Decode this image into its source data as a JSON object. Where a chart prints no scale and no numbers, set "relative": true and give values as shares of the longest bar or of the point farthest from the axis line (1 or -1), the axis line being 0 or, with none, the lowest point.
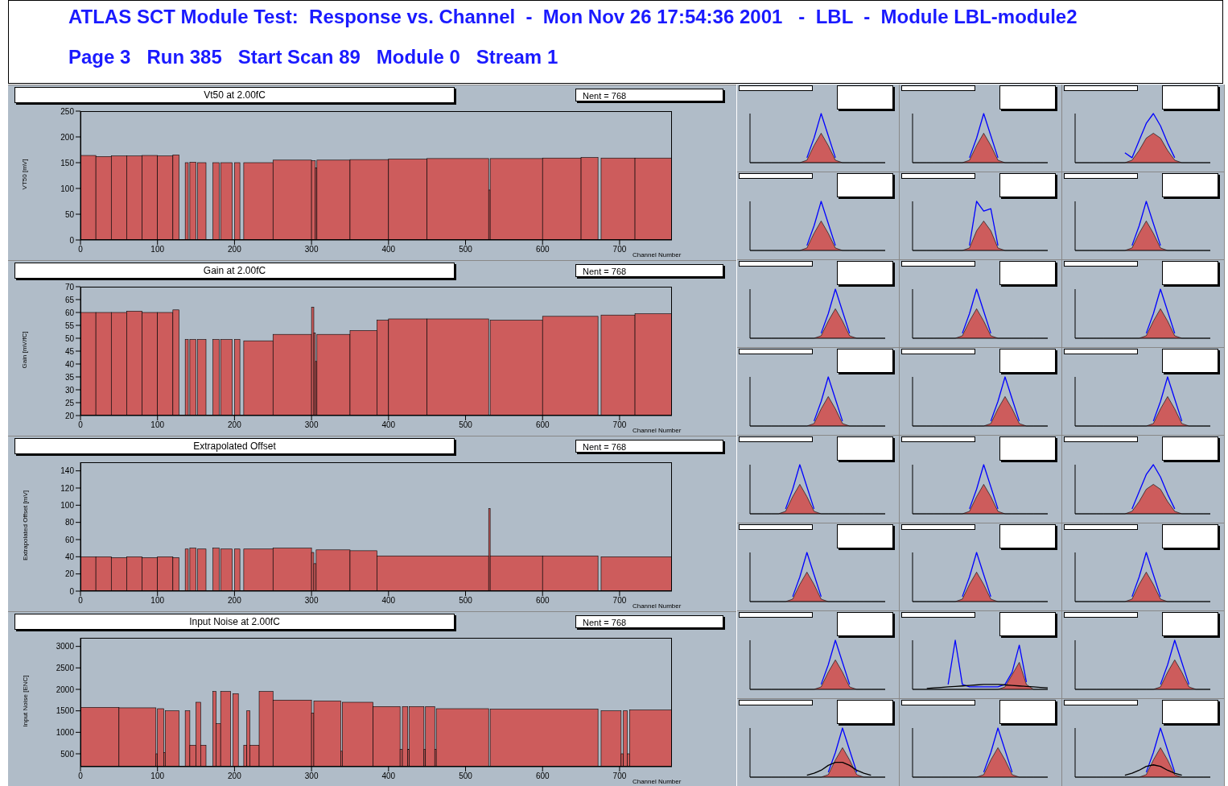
{
  "chart_data": [
    {
      "type": "other",
      "title": "ATLAS SCT Module Test:  Response vs. Channel  -  Mon Nov 26 17:54:36 2001   -  LBL  -  Module LBL-module2",
      "subtitle": "Page 3   Run 385   Start Scan 89   Module 0   Stream 1"
    },
    {
      "type": "histogram",
      "title": "Vt50 at 2.00fC",
      "xlabel": "Channel Number",
      "ylabel": "VT50 [mV]",
      "color": "#cd5c5c",
      "annotations": [
        "Nent = 768"
      ],
      "xlim": [
        0,
        768
      ],
      "xticks": [
        0,
        100,
        200,
        300,
        400,
        500,
        600,
        700
      ],
      "ylim": [
        0,
        250
      ],
      "yticks": [
        0,
        50,
        100,
        150,
        200,
        250
      ],
      "bins": [
        0,
        20,
        40,
        60,
        80,
        100,
        120,
        128,
        136,
        140,
        142,
        150,
        152,
        163,
        172,
        180,
        182,
        197,
        200,
        207,
        212,
        250,
        300,
        305,
        307,
        350,
        400,
        450,
        530,
        532,
        600,
        650,
        672,
        676,
        720,
        768
      ],
      "values": [
        164,
        162,
        163,
        163,
        164,
        163,
        165,
        0,
        150,
        0,
        151,
        0,
        150,
        0,
        150,
        0,
        150,
        0,
        150,
        0,
        150,
        155,
        154,
        140,
        155,
        156,
        157,
        158,
        97,
        158,
        159,
        160,
        0,
        159,
        159
      ]
    },
    {
      "type": "histogram",
      "title": "Gain at 2.00fC",
      "xlabel": "Channel Number",
      "ylabel": "Gain [mV/fC]",
      "color": "#cd5c5c",
      "annotations": [
        "Nent = 768"
      ],
      "xlim": [
        0,
        768
      ],
      "xticks": [
        0,
        100,
        200,
        300,
        400,
        500,
        600,
        700
      ],
      "ylim": [
        20,
        70
      ],
      "yticks": [
        20,
        25,
        30,
        35,
        40,
        45,
        50,
        55,
        60,
        65,
        70
      ],
      "bins": [
        0,
        20,
        40,
        60,
        80,
        100,
        120,
        128,
        136,
        140,
        142,
        150,
        152,
        163,
        172,
        180,
        182,
        197,
        200,
        207,
        212,
        250,
        300,
        303,
        305,
        307,
        350,
        385,
        400,
        450,
        530,
        532,
        600,
        672,
        676,
        720,
        768
      ],
      "values": [
        60,
        60,
        60,
        60.5,
        60,
        60,
        61,
        null,
        49.5,
        null,
        49.5,
        null,
        49.5,
        null,
        49.5,
        null,
        49.5,
        null,
        49.5,
        null,
        49,
        51.5,
        62,
        52,
        41,
        51.5,
        53,
        57,
        57.5,
        57.5,
        null,
        57,
        58.5,
        null,
        59,
        59.5
      ]
    },
    {
      "type": "histogram",
      "title": "Extrapolated Offset",
      "xlabel": "Channel Number",
      "ylabel": "Extrapolated Offset [mV]",
      "color": "#cd5c5c",
      "annotations": [
        "Nent = 768"
      ],
      "xlim": [
        0,
        768
      ],
      "xticks": [
        0,
        100,
        200,
        300,
        400,
        500,
        600,
        700
      ],
      "ylim": [
        0,
        150
      ],
      "yticks": [
        0,
        20,
        40,
        60,
        80,
        100,
        120,
        140
      ],
      "bins": [
        0,
        20,
        40,
        60,
        80,
        100,
        120,
        128,
        136,
        140,
        142,
        150,
        152,
        163,
        172,
        180,
        182,
        197,
        200,
        207,
        212,
        250,
        300,
        303,
        306,
        350,
        385,
        530,
        532,
        600,
        672,
        676,
        768
      ],
      "values": [
        40,
        40,
        39,
        40,
        39,
        40,
        39,
        0,
        49,
        0,
        50,
        0,
        49,
        0,
        50,
        0,
        49,
        0,
        49,
        0,
        49,
        50,
        45,
        32,
        48,
        47,
        41,
        96,
        41,
        41,
        0,
        40
      ]
    },
    {
      "type": "histogram",
      "title": "Input Noise at 2.00fC",
      "xlabel": "Channel Number",
      "ylabel": "Input Noise [ENC]",
      "color": "#cd5c5c",
      "annotations": [
        "Nent = 768"
      ],
      "xlim": [
        0,
        768
      ],
      "xticks": [
        0,
        100,
        200,
        300,
        400,
        500,
        600,
        700
      ],
      "ylim": [
        200,
        3200
      ],
      "yticks": [
        500,
        1000,
        1500,
        2000,
        2500,
        3000
      ],
      "bins": [
        0,
        50,
        98,
        100,
        108,
        110,
        128,
        136,
        142,
        150,
        156,
        163,
        172,
        176,
        182,
        195,
        198,
        205,
        212,
        216,
        220,
        232,
        250,
        300,
        303,
        338,
        340,
        380,
        415,
        418,
        425,
        427,
        446,
        448,
        460,
        462,
        530,
        532,
        672,
        676,
        702,
        705,
        710,
        713,
        768
      ],
      "values": [
        1580,
        1570,
        500,
        1550,
        530,
        1500,
        null,
        1500,
        700,
        1700,
        700,
        null,
        1950,
        1200,
        1950,
        null,
        1900,
        null,
        700,
        1500,
        700,
        1950,
        1750,
        1450,
        1730,
        560,
        1700,
        1600,
        600,
        1600,
        600,
        1600,
        600,
        1600,
        600,
        1550,
        null,
        1540,
        null,
        1500,
        500,
        1500,
        500,
        1520
      ]
    },
    {
      "type": "area",
      "relative": true,
      "tick_labels": false,
      "categories": [
        null,
        null,
        null,
        null,
        null,
        null,
        null,
        null,
        null,
        null,
        null,
        null,
        null,
        null,
        null,
        null,
        null,
        null,
        null,
        null
      ],
      "series": [
        {
          "color": "#cd5c5c",
          "values": [
            0,
            0,
            0,
            0,
            0,
            0,
            0,
            0,
            0.05,
            0.35,
            0.6,
            0.35,
            0.05,
            0,
            0,
            0,
            0,
            0,
            0,
            0
          ]
        },
        {
          "type": "line",
          "color": "#0000ff",
          "values": [
            null,
            null,
            null,
            null,
            null,
            null,
            null,
            null,
            0.1,
            0.5,
            1,
            0.55,
            0.1,
            null,
            null,
            null,
            null,
            null,
            null,
            null
          ]
        }
      ]
    },
    {
      "type": "area",
      "relative": true,
      "tick_labels": false,
      "categories": [
        null,
        null,
        null,
        null,
        null,
        null,
        null,
        null,
        null,
        null,
        null,
        null,
        null,
        null,
        null,
        null,
        null,
        null,
        null,
        null
      ],
      "series": [
        {
          "color": "#cd5c5c",
          "values": [
            0,
            0,
            0,
            0,
            0,
            0,
            0,
            0,
            0.05,
            0.35,
            0.6,
            0.35,
            0.05,
            0,
            0,
            0,
            0,
            0,
            0,
            0
          ]
        },
        {
          "type": "line",
          "color": "#0000ff",
          "values": [
            null,
            null,
            null,
            null,
            null,
            null,
            null,
            null,
            0.1,
            0.5,
            1,
            0.55,
            0.1,
            null,
            null,
            null,
            null,
            null,
            null,
            null
          ]
        }
      ]
    },
    {
      "type": "area",
      "relative": true,
      "tick_labels": false,
      "categories": [
        null,
        null,
        null,
        null,
        null,
        null,
        null,
        null,
        null,
        null,
        null,
        null,
        null,
        null,
        null,
        null,
        null,
        null,
        null,
        null
      ],
      "series": [
        {
          "color": "#cd5c5c",
          "values": [
            0,
            0,
            0,
            0,
            0,
            0,
            0,
            0,
            0.05,
            0.25,
            0.5,
            0.6,
            0.5,
            0.25,
            0.05,
            0,
            0,
            0,
            0,
            0
          ]
        },
        {
          "type": "line",
          "color": "#0000ff",
          "values": [
            null,
            null,
            null,
            null,
            null,
            null,
            null,
            0.2,
            0.1,
            0.45,
            0.8,
            1,
            0.75,
            0.4,
            0.1,
            null,
            null,
            null,
            null,
            null
          ]
        }
      ]
    },
    {
      "type": "area",
      "relative": true,
      "tick_labels": false,
      "categories": [
        null,
        null,
        null,
        null,
        null,
        null,
        null,
        null,
        null,
        null,
        null,
        null,
        null,
        null,
        null,
        null,
        null,
        null,
        null,
        null
      ],
      "series": [
        {
          "color": "#cd5c5c",
          "values": [
            0,
            0,
            0,
            0,
            0,
            0,
            0,
            0,
            0.05,
            0.35,
            0.6,
            0.35,
            0.05,
            0,
            0,
            0,
            0,
            0,
            0,
            0
          ]
        },
        {
          "type": "line",
          "color": "#0000ff",
          "values": [
            null,
            null,
            null,
            null,
            null,
            null,
            null,
            null,
            0.1,
            0.5,
            1,
            0.55,
            0.1,
            null,
            null,
            null,
            null,
            null,
            null,
            null
          ]
        }
      ]
    },
    {
      "type": "area",
      "relative": true,
      "tick_labels": false,
      "categories": [
        null,
        null,
        null,
        null,
        null,
        null,
        null,
        null,
        null,
        null,
        null,
        null,
        null,
        null,
        null,
        null,
        null,
        null,
        null,
        null
      ],
      "series": [
        {
          "color": "#cd5c5c",
          "values": [
            0,
            0,
            0,
            0,
            0,
            0,
            0,
            0,
            0.05,
            0.4,
            0.6,
            0.4,
            0.05,
            0,
            0,
            0,
            0,
            0,
            0,
            0
          ]
        },
        {
          "type": "line",
          "color": "#0000ff",
          "values": [
            null,
            null,
            null,
            null,
            null,
            null,
            null,
            null,
            0.1,
            1,
            0.8,
            0.85,
            0.1,
            null,
            null,
            null,
            null,
            null,
            null,
            null
          ]
        }
      ]
    },
    {
      "type": "area",
      "relative": true,
      "tick_labels": false,
      "categories": [
        null,
        null,
        null,
        null,
        null,
        null,
        null,
        null,
        null,
        null,
        null,
        null,
        null,
        null,
        null,
        null,
        null,
        null,
        null,
        null
      ],
      "series": [
        {
          "color": "#cd5c5c",
          "values": [
            0,
            0,
            0,
            0,
            0,
            0,
            0,
            0,
            0.05,
            0.35,
            0.6,
            0.35,
            0.05,
            0,
            0,
            0,
            0,
            0,
            0,
            0
          ]
        },
        {
          "type": "line",
          "color": "#0000ff",
          "values": [
            null,
            null,
            null,
            null,
            null,
            null,
            null,
            null,
            0.1,
            0.5,
            1,
            0.55,
            0.1,
            null,
            null,
            null,
            null,
            null,
            null,
            null
          ]
        }
      ]
    },
    {
      "type": "area",
      "relative": true,
      "tick_labels": false,
      "categories": [
        null,
        null,
        null,
        null,
        null,
        null,
        null,
        null,
        null,
        null,
        null,
        null,
        null,
        null,
        null,
        null,
        null,
        null,
        null,
        null
      ],
      "series": [
        {
          "color": "#cd5c5c",
          "values": [
            0,
            0,
            0,
            0,
            0,
            0,
            0,
            0,
            0,
            0,
            0.05,
            0.35,
            0.6,
            0.35,
            0.05,
            0,
            0,
            0,
            0,
            0
          ]
        },
        {
          "type": "line",
          "color": "#0000ff",
          "values": [
            null,
            null,
            null,
            null,
            null,
            null,
            null,
            null,
            null,
            null,
            0.1,
            0.5,
            1,
            0.55,
            0.1,
            null,
            null,
            null,
            null,
            null
          ]
        }
      ]
    },
    {
      "type": "area",
      "relative": true,
      "tick_labels": false,
      "categories": [
        null,
        null,
        null,
        null,
        null,
        null,
        null,
        null,
        null,
        null,
        null,
        null,
        null,
        null,
        null,
        null,
        null,
        null,
        null,
        null
      ],
      "series": [
        {
          "color": "#cd5c5c",
          "values": [
            0,
            0,
            0,
            0,
            0,
            0,
            0,
            0.05,
            0.35,
            0.6,
            0.35,
            0.05,
            0,
            0,
            0,
            0,
            0,
            0,
            0,
            0
          ]
        },
        {
          "type": "line",
          "color": "#0000ff",
          "values": [
            null,
            null,
            null,
            null,
            null,
            null,
            null,
            0.1,
            0.5,
            1,
            0.55,
            0.1,
            null,
            null,
            null,
            null,
            null,
            null,
            null,
            null
          ]
        }
      ]
    },
    {
      "type": "area",
      "relative": true,
      "tick_labels": false,
      "categories": [
        null,
        null,
        null,
        null,
        null,
        null,
        null,
        null,
        null,
        null,
        null,
        null,
        null,
        null,
        null,
        null,
        null,
        null,
        null,
        null
      ],
      "series": [
        {
          "color": "#cd5c5c",
          "values": [
            0,
            0,
            0,
            0,
            0,
            0,
            0,
            0,
            0,
            0,
            0.05,
            0.35,
            0.6,
            0.35,
            0.05,
            0,
            0,
            0,
            0,
            0
          ]
        },
        {
          "type": "line",
          "color": "#0000ff",
          "values": [
            null,
            null,
            null,
            null,
            null,
            null,
            null,
            null,
            null,
            null,
            0.1,
            0.5,
            1,
            0.55,
            0.1,
            null,
            null,
            null,
            null,
            null
          ]
        }
      ]
    },
    {
      "type": "area",
      "relative": true,
      "tick_labels": false,
      "categories": [
        null,
        null,
        null,
        null,
        null,
        null,
        null,
        null,
        null,
        null,
        null,
        null,
        null,
        null,
        null,
        null,
        null,
        null,
        null,
        null
      ],
      "series": [
        {
          "color": "#cd5c5c",
          "values": [
            0,
            0,
            0,
            0,
            0,
            0,
            0,
            0,
            0,
            0.05,
            0.35,
            0.6,
            0.35,
            0.05,
            0,
            0,
            0,
            0,
            0,
            0
          ]
        },
        {
          "type": "line",
          "color": "#0000ff",
          "values": [
            null,
            null,
            null,
            null,
            null,
            null,
            null,
            null,
            null,
            0.1,
            0.5,
            1,
            0.55,
            0.1,
            null,
            null,
            null,
            null,
            null,
            null
          ]
        }
      ]
    },
    {
      "type": "area",
      "relative": true,
      "tick_labels": false,
      "categories": [
        null,
        null,
        null,
        null,
        null,
        null,
        null,
        null,
        null,
        null,
        null,
        null,
        null,
        null,
        null,
        null,
        null,
        null,
        null,
        null
      ],
      "series": [
        {
          "color": "#cd5c5c",
          "values": [
            0,
            0,
            0,
            0,
            0,
            0,
            0,
            0,
            0,
            0,
            0,
            0.05,
            0.35,
            0.6,
            0.35,
            0.05,
            0,
            0,
            0,
            0
          ]
        },
        {
          "type": "line",
          "color": "#0000ff",
          "values": [
            null,
            null,
            null,
            null,
            null,
            null,
            null,
            null,
            null,
            null,
            null,
            0.1,
            0.5,
            1,
            0.55,
            0.1,
            null,
            null,
            null,
            null
          ]
        }
      ]
    },
    {
      "type": "area",
      "relative": true,
      "tick_labels": false,
      "categories": [
        null,
        null,
        null,
        null,
        null,
        null,
        null,
        null,
        null,
        null,
        null,
        null,
        null,
        null,
        null,
        null,
        null,
        null,
        null,
        null
      ],
      "series": [
        {
          "color": "#cd5c5c",
          "values": [
            0,
            0,
            0,
            0,
            0,
            0,
            0,
            0,
            0,
            0,
            0,
            0.05,
            0.35,
            0.6,
            0.35,
            0.05,
            0,
            0,
            0,
            0
          ]
        },
        {
          "type": "line",
          "color": "#0000ff",
          "values": [
            null,
            null,
            null,
            null,
            null,
            null,
            null,
            null,
            null,
            null,
            null,
            0.1,
            0.5,
            1,
            0.55,
            0.1,
            null,
            null,
            null,
            null
          ]
        }
      ]
    },
    {
      "type": "area",
      "relative": true,
      "tick_labels": false,
      "categories": [
        null,
        null,
        null,
        null,
        null,
        null,
        null,
        null,
        null,
        null,
        null,
        null,
        null,
        null,
        null,
        null,
        null,
        null,
        null,
        null
      ],
      "series": [
        {
          "color": "#cd5c5c",
          "values": [
            0,
            0,
            0,
            0,
            0,
            0.05,
            0.35,
            0.6,
            0.35,
            0.05,
            0,
            0,
            0,
            0,
            0,
            0,
            0,
            0,
            0,
            0
          ]
        },
        {
          "type": "line",
          "color": "#0000ff",
          "values": [
            null,
            null,
            null,
            null,
            null,
            0.1,
            0.5,
            1,
            0.55,
            0.1,
            null,
            null,
            null,
            null,
            null,
            null,
            null,
            null,
            null,
            null
          ]
        }
      ]
    },
    {
      "type": "area",
      "relative": true,
      "tick_labels": false,
      "categories": [
        null,
        null,
        null,
        null,
        null,
        null,
        null,
        null,
        null,
        null,
        null,
        null,
        null,
        null,
        null,
        null,
        null,
        null,
        null,
        null
      ],
      "series": [
        {
          "color": "#cd5c5c",
          "values": [
            0,
            0,
            0,
            0,
            0,
            0,
            0,
            0,
            0.05,
            0.35,
            0.6,
            0.35,
            0.05,
            0,
            0,
            0,
            0,
            0,
            0,
            0
          ]
        },
        {
          "type": "line",
          "color": "#0000ff",
          "values": [
            null,
            null,
            null,
            null,
            null,
            null,
            null,
            null,
            0.1,
            0.5,
            1,
            0.55,
            0.1,
            null,
            null,
            null,
            null,
            null,
            null,
            null
          ]
        }
      ]
    },
    {
      "type": "area",
      "relative": true,
      "tick_labels": false,
      "categories": [
        null,
        null,
        null,
        null,
        null,
        null,
        null,
        null,
        null,
        null,
        null,
        null,
        null,
        null,
        null,
        null,
        null,
        null,
        null,
        null
      ],
      "series": [
        {
          "color": "#cd5c5c",
          "values": [
            0,
            0,
            0,
            0,
            0,
            0,
            0,
            0,
            0.05,
            0.25,
            0.5,
            0.6,
            0.5,
            0.25,
            0.05,
            0,
            0,
            0,
            0,
            0
          ]
        },
        {
          "type": "line",
          "color": "#0000ff",
          "values": [
            null,
            null,
            null,
            null,
            null,
            null,
            null,
            null,
            0.1,
            0.45,
            0.8,
            1,
            0.75,
            0.4,
            0.1,
            null,
            null,
            null,
            null,
            null
          ]
        }
      ]
    },
    {
      "type": "area",
      "relative": true,
      "tick_labels": false,
      "categories": [
        null,
        null,
        null,
        null,
        null,
        null,
        null,
        null,
        null,
        null,
        null,
        null,
        null,
        null,
        null,
        null,
        null,
        null,
        null,
        null
      ],
      "series": [
        {
          "color": "#cd5c5c",
          "values": [
            0,
            0,
            0,
            0,
            0,
            0,
            0.05,
            0.35,
            0.6,
            0.35,
            0.05,
            0,
            0,
            0,
            0,
            0,
            0,
            0,
            0,
            0
          ]
        },
        {
          "type": "line",
          "color": "#0000ff",
          "values": [
            null,
            null,
            null,
            null,
            null,
            null,
            0.1,
            0.5,
            1,
            0.55,
            0.1,
            null,
            null,
            null,
            null,
            null,
            null,
            null,
            null,
            null
          ]
        }
      ]
    },
    {
      "type": "area",
      "relative": true,
      "tick_labels": false,
      "categories": [
        null,
        null,
        null,
        null,
        null,
        null,
        null,
        null,
        null,
        null,
        null,
        null,
        null,
        null,
        null,
        null,
        null,
        null,
        null,
        null
      ],
      "series": [
        {
          "color": "#cd5c5c",
          "values": [
            0,
            0,
            0,
            0,
            0,
            0,
            0,
            0.05,
            0.35,
            0.6,
            0.35,
            0.05,
            0,
            0,
            0,
            0,
            0,
            0,
            0,
            0
          ]
        },
        {
          "type": "line",
          "color": "#0000ff",
          "values": [
            null,
            null,
            null,
            null,
            null,
            null,
            null,
            0.1,
            0.5,
            1,
            0.55,
            0.1,
            null,
            null,
            null,
            null,
            null,
            null,
            null,
            null
          ]
        }
      ]
    },
    {
      "type": "area",
      "relative": true,
      "tick_labels": false,
      "categories": [
        null,
        null,
        null,
        null,
        null,
        null,
        null,
        null,
        null,
        null,
        null,
        null,
        null,
        null,
        null,
        null,
        null,
        null,
        null,
        null
      ],
      "series": [
        {
          "color": "#cd5c5c",
          "values": [
            0,
            0,
            0,
            0,
            0,
            0,
            0,
            0,
            0.05,
            0.35,
            0.6,
            0.35,
            0.05,
            0,
            0,
            0,
            0,
            0,
            0,
            0
          ]
        },
        {
          "type": "line",
          "color": "#0000ff",
          "values": [
            null,
            null,
            null,
            null,
            null,
            null,
            null,
            null,
            0.1,
            0.5,
            1,
            0.55,
            0.1,
            null,
            null,
            null,
            null,
            null,
            null,
            null
          ]
        }
      ]
    },
    {
      "type": "area",
      "relative": true,
      "tick_labels": false,
      "categories": [
        null,
        null,
        null,
        null,
        null,
        null,
        null,
        null,
        null,
        null,
        null,
        null,
        null,
        null,
        null,
        null,
        null,
        null,
        null,
        null
      ],
      "series": [
        {
          "color": "#cd5c5c",
          "values": [
            0,
            0,
            0,
            0,
            0,
            0,
            0,
            0,
            0,
            0,
            0.05,
            0.35,
            0.6,
            0.35,
            0.05,
            0,
            0,
            0,
            0,
            0
          ]
        },
        {
          "type": "line",
          "color": "#0000ff",
          "values": [
            null,
            null,
            null,
            null,
            null,
            null,
            null,
            null,
            null,
            null,
            0.1,
            0.5,
            1,
            0.55,
            0.1,
            null,
            null,
            null,
            null,
            null
          ]
        }
      ]
    },
    {
      "type": "area",
      "relative": true,
      "tick_labels": false,
      "categories": [
        null,
        null,
        null,
        null,
        null,
        null,
        null,
        null,
        null,
        null,
        null,
        null,
        null,
        null,
        null,
        null,
        null,
        null,
        null,
        null
      ],
      "series": [
        {
          "color": "#cd5c5c",
          "values": [
            0,
            0,
            0,
            0,
            0,
            0,
            0,
            0,
            0,
            0,
            0,
            0,
            0,
            0.05,
            0.3,
            0.55,
            0.1,
            0,
            0,
            0
          ]
        },
        {
          "type": "line",
          "color": "#0000ff",
          "values": [
            null,
            null,
            null,
            null,
            null,
            0.1,
            1,
            0.1,
            0.05,
            0.05,
            0.05,
            0.05,
            0.05,
            0.1,
            0.35,
            0.9,
            0.15,
            null,
            null,
            null
          ]
        },
        {
          "type": "line",
          "color": "#000000",
          "values": [
            null,
            null,
            0.02,
            0.03,
            0.04,
            0.05,
            0.06,
            0.07,
            0.08,
            0.09,
            0.1,
            0.1,
            0.1,
            0.09,
            0.08,
            0.07,
            0.06,
            0.05,
            0.04,
            0.03
          ]
        }
      ]
    },
    {
      "type": "area",
      "relative": true,
      "tick_labels": false,
      "categories": [
        null,
        null,
        null,
        null,
        null,
        null,
        null,
        null,
        null,
        null,
        null,
        null,
        null,
        null,
        null,
        null,
        null,
        null,
        null,
        null
      ],
      "series": [
        {
          "color": "#cd5c5c",
          "values": [
            0,
            0,
            0,
            0,
            0,
            0,
            0,
            0,
            0,
            0,
            0,
            0,
            0.05,
            0.35,
            0.6,
            0.35,
            0.05,
            0,
            0,
            0
          ]
        },
        {
          "type": "line",
          "color": "#0000ff",
          "values": [
            null,
            null,
            null,
            null,
            null,
            null,
            null,
            null,
            null,
            null,
            null,
            null,
            0.1,
            0.5,
            1,
            0.55,
            0.1,
            null,
            null,
            null
          ]
        }
      ]
    },
    {
      "type": "area",
      "relative": true,
      "tick_labels": false,
      "categories": [
        null,
        null,
        null,
        null,
        null,
        null,
        null,
        null,
        null,
        null,
        null,
        null,
        null,
        null,
        null,
        null,
        null,
        null,
        null,
        null
      ],
      "series": [
        {
          "color": "#cd5c5c",
          "values": [
            0,
            0,
            0,
            0,
            0,
            0,
            0,
            0,
            0,
            0,
            0,
            0.05,
            0.35,
            0.6,
            0.35,
            0.05,
            0,
            0,
            0,
            0
          ]
        },
        {
          "type": "line",
          "color": "#0000ff",
          "values": [
            null,
            null,
            null,
            null,
            null,
            null,
            null,
            null,
            null,
            null,
            null,
            0.1,
            0.5,
            1,
            0.55,
            0.1,
            null,
            null,
            null,
            null
          ]
        },
        {
          "type": "line",
          "color": "#000000",
          "values": [
            null,
            null,
            null,
            null,
            null,
            null,
            null,
            null,
            0.04,
            0.08,
            0.14,
            0.24,
            0.3,
            0.3,
            0.24,
            0.14,
            0.08,
            0.04,
            null,
            null
          ]
        }
      ]
    },
    {
      "type": "area",
      "relative": true,
      "tick_labels": false,
      "categories": [
        null,
        null,
        null,
        null,
        null,
        null,
        null,
        null,
        null,
        null,
        null,
        null,
        null,
        null,
        null,
        null,
        null,
        null,
        null,
        null
      ],
      "series": [
        {
          "color": "#cd5c5c",
          "values": [
            0,
            0,
            0,
            0,
            0,
            0,
            0,
            0,
            0,
            0,
            0.05,
            0.35,
            0.6,
            0.35,
            0.05,
            0,
            0,
            0,
            0,
            0
          ]
        },
        {
          "type": "line",
          "color": "#0000ff",
          "values": [
            null,
            null,
            null,
            null,
            null,
            null,
            null,
            null,
            null,
            null,
            0.1,
            0.5,
            1,
            0.55,
            0.1,
            null,
            null,
            null,
            null,
            null
          ]
        }
      ]
    },
    {
      "type": "area",
      "relative": true,
      "tick_labels": false,
      "categories": [
        null,
        null,
        null,
        null,
        null,
        null,
        null,
        null,
        null,
        null,
        null,
        null,
        null,
        null,
        null,
        null,
        null,
        null,
        null,
        null
      ],
      "series": [
        {
          "color": "#cd5c5c",
          "values": [
            0,
            0,
            0,
            0,
            0,
            0,
            0,
            0,
            0,
            0,
            0.05,
            0.35,
            0.6,
            0.35,
            0.05,
            0,
            0,
            0,
            0,
            0
          ]
        },
        {
          "type": "line",
          "color": "#0000ff",
          "values": [
            null,
            null,
            null,
            null,
            null,
            null,
            null,
            null,
            null,
            null,
            0.1,
            0.5,
            1,
            0.55,
            0.1,
            null,
            null,
            null,
            null,
            null
          ]
        },
        {
          "type": "line",
          "color": "#000000",
          "values": [
            null,
            null,
            null,
            null,
            null,
            null,
            null,
            0.04,
            0.08,
            0.14,
            0.22,
            0.25,
            0.22,
            0.14,
            0.08,
            0.04,
            null,
            null,
            null,
            null
          ]
        }
      ]
    }
  ]
}
